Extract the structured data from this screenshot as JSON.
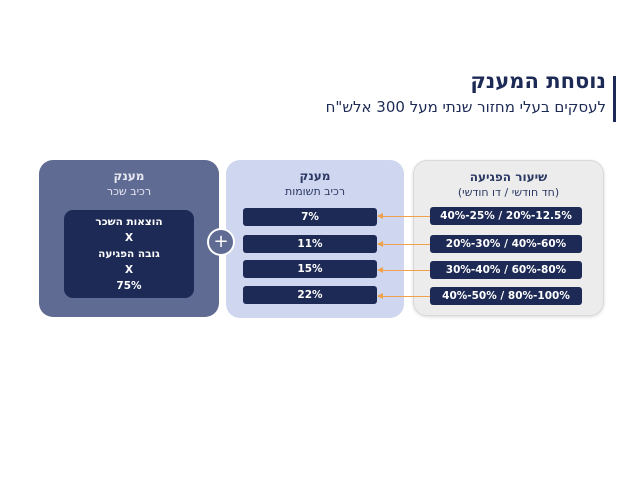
{
  "header": {
    "title": "נוסחת המענק",
    "subtitle": "לעסקים בעלי מחזור שנתי מעל 300 אלש\"ח"
  },
  "rate_box": {
    "title": "שיעור הפגיעה",
    "subtitle": "(חד חודשי / דו חודשי)",
    "rows": [
      "40%-25% / 20%-12.5%",
      "20%-30% / 40%-60%",
      "30%-40% / 60%-80%",
      "40%-50% / 80%-100%"
    ]
  },
  "asset_box": {
    "title": "מענק",
    "subtitle": "רכיב תשומות",
    "rows": [
      "7%",
      "11%",
      "15%",
      "22%"
    ]
  },
  "salary_box": {
    "title": "מענק",
    "subtitle": "רכיב שכר",
    "formula": [
      "הוצאות השכר",
      "X",
      "גובה הפגיעה",
      "X",
      "75%"
    ]
  },
  "operator": "+",
  "colors": {
    "navy": "#1d2a55",
    "arrow": "#f0a24a",
    "slate": "#5f6b93",
    "lavender": "#cfd6ef"
  }
}
